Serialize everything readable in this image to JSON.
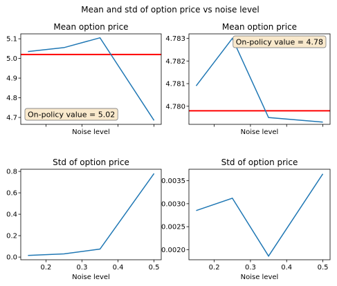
{
  "figure": {
    "suptitle": "Mean and std of option price vs noise level"
  },
  "colors": {
    "line": "#1f77b4",
    "ref_line": "#ff0000",
    "annotation_bg": "#f9e9cc",
    "annotation_border": "#8a8a8a"
  },
  "chart_data": [
    {
      "type": "line",
      "title": "Mean option price",
      "xlabel": "Noise level",
      "ylabel": "",
      "x": [
        0.15,
        0.25,
        0.35,
        0.5
      ],
      "series": [
        {
          "values": [
            5.035,
            5.055,
            5.105,
            4.685
          ]
        }
      ],
      "hline": 5.02,
      "annotation": "On-policy value = 5.02",
      "annotation_position": "bottom-left",
      "xlim": [
        0.13,
        0.52
      ],
      "ylim": [
        4.665,
        5.125
      ],
      "yticks": [
        4.7,
        4.8,
        4.9,
        5.0,
        5.1
      ],
      "ytick_labels": [
        "4.7",
        "4.8",
        "4.9",
        "5.0",
        "5.1"
      ],
      "xticks": [
        0.2,
        0.3,
        0.4,
        0.5
      ],
      "xtick_labels": [],
      "grid": false
    },
    {
      "type": "line",
      "title": "Mean option price",
      "xlabel": "Noise level",
      "ylabel": "",
      "x": [
        0.15,
        0.25,
        0.35,
        0.5
      ],
      "series": [
        {
          "values": [
            4.7809,
            4.783,
            4.7795,
            4.7793
          ]
        }
      ],
      "hline": 4.7798,
      "annotation": "On-policy value = 4.78",
      "annotation_position": "top-right",
      "xlim": [
        0.13,
        0.52
      ],
      "ylim": [
        4.7792,
        4.7832
      ],
      "yticks": [
        4.78,
        4.781,
        4.782,
        4.783
      ],
      "ytick_labels": [
        "4.780",
        "4.781",
        "4.782",
        "4.783"
      ],
      "xticks": [
        0.2,
        0.3,
        0.4,
        0.5
      ],
      "xtick_labels": [],
      "grid": false
    },
    {
      "type": "line",
      "title": "Std of option price",
      "xlabel": "Noise level",
      "ylabel": "",
      "x": [
        0.15,
        0.25,
        0.35,
        0.5
      ],
      "series": [
        {
          "values": [
            0.015,
            0.03,
            0.075,
            0.78
          ]
        }
      ],
      "xlim": [
        0.13,
        0.52
      ],
      "ylim": [
        -0.025,
        0.82
      ],
      "yticks": [
        0.0,
        0.2,
        0.4,
        0.6,
        0.8
      ],
      "ytick_labels": [
        "0.0",
        "0.2",
        "0.4",
        "0.6",
        "0.8"
      ],
      "xticks": [
        0.2,
        0.3,
        0.4,
        0.5
      ],
      "xtick_labels": [
        "0.2",
        "0.3",
        "0.4",
        "0.5"
      ],
      "grid": false
    },
    {
      "type": "line",
      "title": "Std of option price",
      "xlabel": "Noise level",
      "ylabel": "",
      "x": [
        0.15,
        0.25,
        0.35,
        0.5
      ],
      "series": [
        {
          "values": [
            0.00285,
            0.00312,
            0.00186,
            0.00365
          ]
        }
      ],
      "xlim": [
        0.13,
        0.52
      ],
      "ylim": [
        0.00178,
        0.00375
      ],
      "yticks": [
        0.002,
        0.0025,
        0.003,
        0.0035
      ],
      "ytick_labels": [
        "0.0020",
        "0.0025",
        "0.0030",
        "0.0035"
      ],
      "xticks": [
        0.2,
        0.3,
        0.4,
        0.5
      ],
      "xtick_labels": [
        "0.2",
        "0.3",
        "0.4",
        "0.5"
      ],
      "grid": false
    }
  ]
}
